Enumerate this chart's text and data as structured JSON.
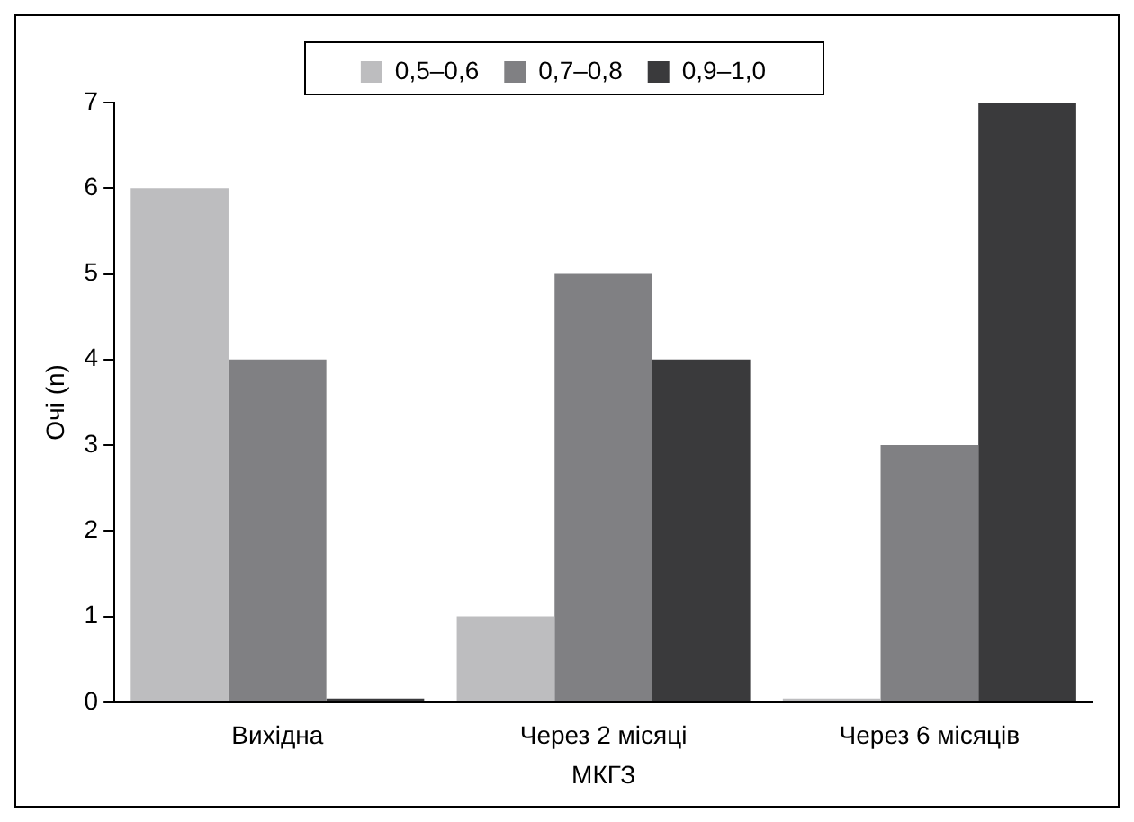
{
  "chart_data": {
    "type": "bar",
    "xlabel": "МКГЗ",
    "ylabel": "Очі (n)",
    "categories": [
      "Вихідна",
      "Через 2 місяці",
      "Через 6 місяців"
    ],
    "series": [
      {
        "name": "0,5–0,6",
        "color": "#bdbdbf",
        "values": [
          6,
          1,
          0
        ]
      },
      {
        "name": "0,7–0,8",
        "color": "#808083",
        "values": [
          4,
          5,
          3
        ]
      },
      {
        "name": "0,9–1,0",
        "color": "#3a3a3c",
        "values": [
          0,
          4,
          7
        ]
      }
    ],
    "ylim": [
      0,
      7
    ],
    "yticks": [
      0,
      1,
      2,
      3,
      4,
      5,
      6,
      7
    ],
    "grid": false,
    "legend": "top"
  }
}
